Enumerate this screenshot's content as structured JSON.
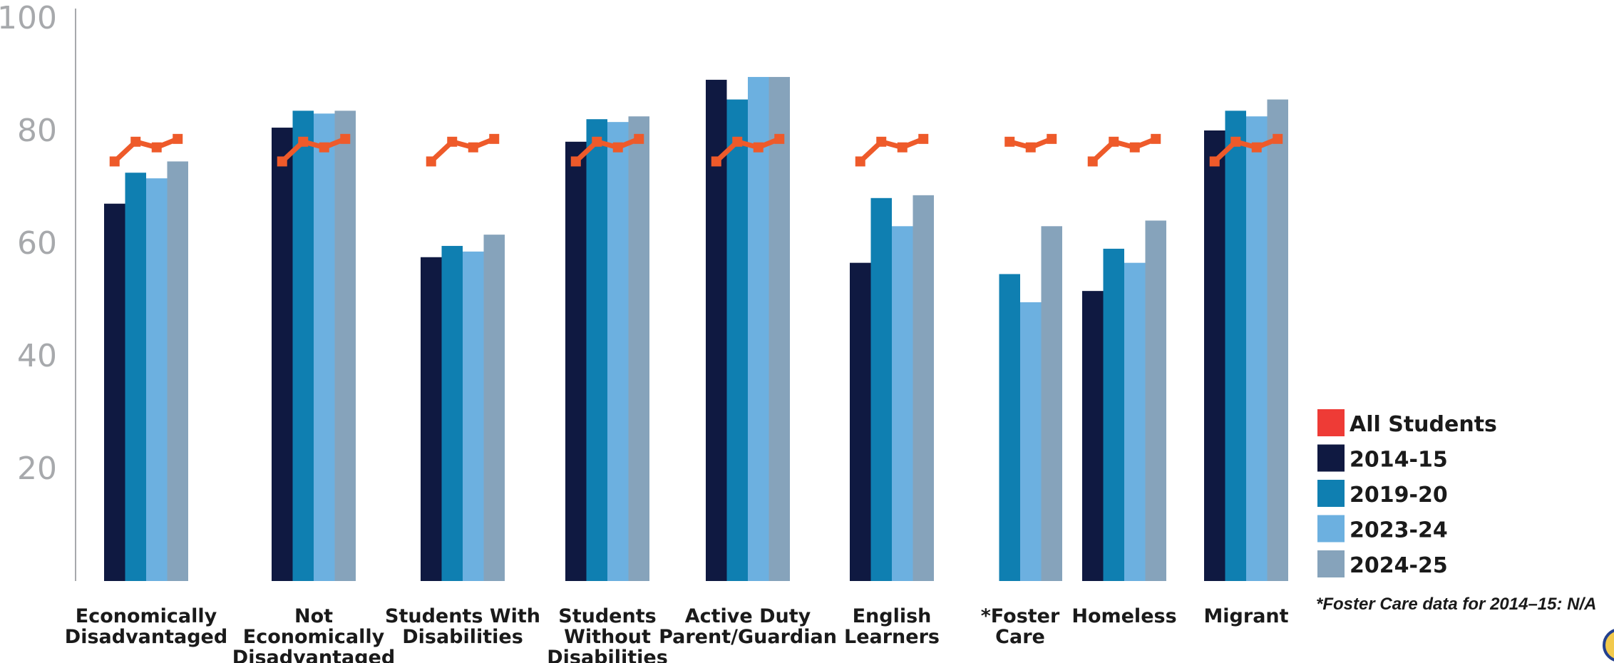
{
  "chart_data": {
    "type": "bar",
    "ylim": [
      0,
      100
    ],
    "yticks": [
      20,
      40,
      60,
      80,
      100
    ],
    "categories": [
      [
        "Economically",
        "Disadvantaged"
      ],
      [
        "Not",
        "Economically",
        "Disadvantaged"
      ],
      [
        "Students With",
        "Disabilities"
      ],
      [
        "Students",
        "Without",
        "Disabilities"
      ],
      [
        "Active Duty",
        "Parent/Guardian"
      ],
      [
        "English",
        "Learners"
      ],
      [
        "*Foster",
        "Care"
      ],
      [
        "Homeless"
      ],
      [
        "Migrant"
      ]
    ],
    "series": [
      {
        "name": "2014-15",
        "color": "#0f1941",
        "values": [
          67,
          80.5,
          57.5,
          78,
          89,
          56.5,
          null,
          51.5,
          80
        ]
      },
      {
        "name": "2019-20",
        "color": "#0f7fb1",
        "values": [
          72.5,
          83.5,
          59.5,
          82,
          85.5,
          68,
          54.5,
          59,
          83.5
        ]
      },
      {
        "name": "2023-24",
        "color": "#6cb0e0",
        "values": [
          71.5,
          83,
          58.5,
          81.5,
          89.5,
          63,
          49.5,
          56.5,
          82.5
        ]
      },
      {
        "name": "2024-25",
        "color": "#86a3bb",
        "values": [
          74.5,
          83.5,
          61.5,
          82.5,
          89.5,
          68.5,
          63,
          64,
          85.5
        ]
      }
    ],
    "line_series": {
      "name": "All Students",
      "color": "#ee5a2a",
      "legend_color": "#ee3b36",
      "values": [
        74.5,
        78,
        77,
        78.5
      ],
      "foster_care_values": [
        null,
        78,
        77,
        78.5
      ]
    },
    "note": "*Foster Care data for 2014–15: N/A",
    "grid": false,
    "legend_position": "right"
  }
}
